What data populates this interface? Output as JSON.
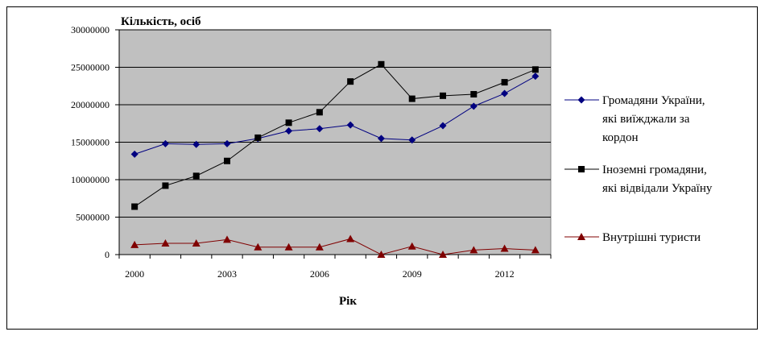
{
  "colors": {
    "plot_background": "#c0c0c0",
    "gridline": "#000000",
    "series_ukraine": "#000080",
    "series_foreign": "#000000",
    "series_domestic": "#800000"
  },
  "chart_data": {
    "type": "line",
    "title": "",
    "ylabel": "Кількість, осіб",
    "xlabel": "Рік",
    "x": [
      2000,
      2001,
      2002,
      2003,
      2004,
      2005,
      2006,
      2007,
      2008,
      2009,
      2010,
      2011,
      2012,
      2013
    ],
    "xticks": [
      "2000",
      "2003",
      "2006",
      "2009",
      "2012"
    ],
    "yticks": [
      "30000000",
      "25000000",
      "20000000",
      "15000000",
      "10000000",
      "5000000",
      "0"
    ],
    "ylim": [
      0,
      30000000
    ],
    "grid": "horizontal",
    "legend_position": "right",
    "series": [
      {
        "name_lines": [
          "Громадяни України,",
          "які виїжджали за",
          "кордон"
        ],
        "marker": "diamond",
        "color": "#000080",
        "values": [
          13400000,
          14800000,
          14700000,
          14800000,
          15500000,
          16500000,
          16800000,
          17300000,
          15500000,
          15300000,
          17200000,
          19800000,
          21500000,
          23800000
        ]
      },
      {
        "name_lines": [
          "Іноземні громадяни,",
          "які відвідали Україну"
        ],
        "marker": "square",
        "color": "#000000",
        "values": [
          6400000,
          9200000,
          10500000,
          12500000,
          15600000,
          17600000,
          19000000,
          23100000,
          25400000,
          20800000,
          21200000,
          21400000,
          23000000,
          24700000
        ]
      },
      {
        "name_lines": [
          "Внутрішні туристи"
        ],
        "marker": "triangle",
        "color": "#800000",
        "values": [
          1300000,
          1500000,
          1500000,
          2000000,
          1000000,
          1000000,
          1000000,
          2100000,
          0,
          1100000,
          0,
          600000,
          800000,
          600000
        ]
      }
    ]
  }
}
